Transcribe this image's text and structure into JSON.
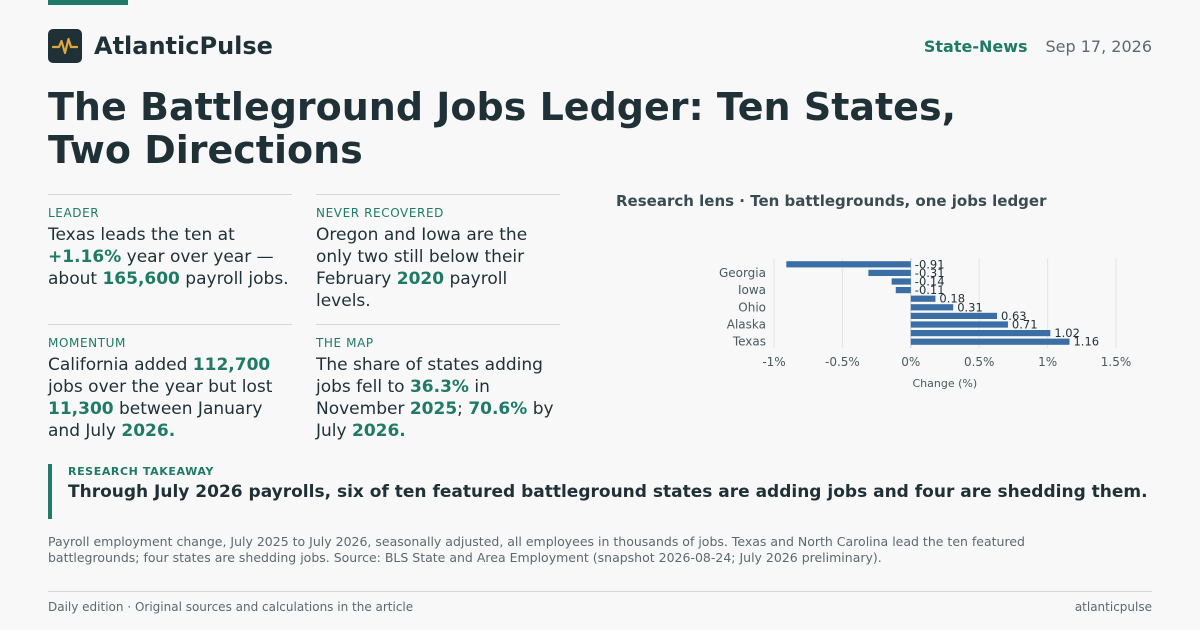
{
  "brand": {
    "name": "AtlanticPulse"
  },
  "header": {
    "section": "State-News",
    "date": "Sep 17, 2026"
  },
  "headline": "The Battleground Jobs Ledger: Ten States, Two Directions",
  "cards": [
    {
      "label": "LEADER",
      "parts": [
        "Texas leads the ten at ",
        "+1.16%",
        " year over year — about ",
        "165,600",
        " payroll jobs."
      ]
    },
    {
      "label": "NEVER RECOVERED",
      "parts": [
        "Oregon and Iowa are the only two still below their February ",
        "2020",
        " payroll levels."
      ]
    },
    {
      "label": "MOMENTUM",
      "parts": [
        "California added ",
        "112,700",
        " jobs over the year but lost ",
        "11,300",
        " between January and July ",
        "2026."
      ]
    },
    {
      "label": "THE MAP",
      "parts": [
        "The share of states adding jobs fell to ",
        "36.3%",
        " in November ",
        "2025",
        "; ",
        "70.6%",
        " by July ",
        "2026."
      ]
    }
  ],
  "chart_heading": "Research lens · Ten battlegrounds, one jobs ledger",
  "chart_data": {
    "type": "bar",
    "orientation": "horizontal",
    "categories": [
      "",
      "Georgia",
      "",
      "Iowa",
      "",
      "Ohio",
      "",
      "Alaska",
      "",
      "Texas"
    ],
    "values": [
      -0.91,
      -0.31,
      -0.14,
      -0.11,
      0.18,
      0.31,
      0.63,
      0.71,
      1.02,
      1.16
    ],
    "value_labels": [
      "-0.91",
      "-0.31",
      "-0.14",
      "-0.11",
      "0.18",
      "0.31",
      "0.63",
      "0.71",
      "1.02",
      "1.16"
    ],
    "xlabel": "Change (%)",
    "xlim": [
      -1.0,
      1.5
    ],
    "xticks": [
      -1,
      -0.5,
      0,
      0.5,
      1,
      1.5
    ],
    "xtick_labels": [
      "-1%",
      "-0.5%",
      "0%",
      "0.5%",
      "1%",
      "1.5%"
    ],
    "grid": true,
    "bar_color": "#3a6ea5"
  },
  "takeaway": {
    "label": "RESEARCH TAKEAWAY",
    "text": "Through July 2026 payrolls, six of ten featured battleground states are adding jobs and four are shedding them."
  },
  "note": "Payroll employment change, July 2025 to July 2026, seasonally adjusted, all employees in thousands of jobs. Texas and North Carolina lead the ten featured battlegrounds; four states are shedding jobs. Source: BLS State and Area Employment (snapshot 2026-08-24; July 2026 preliminary).",
  "footer": {
    "left": "Daily edition · Original sources and calculations in the article",
    "right": "atlanticpulse"
  }
}
